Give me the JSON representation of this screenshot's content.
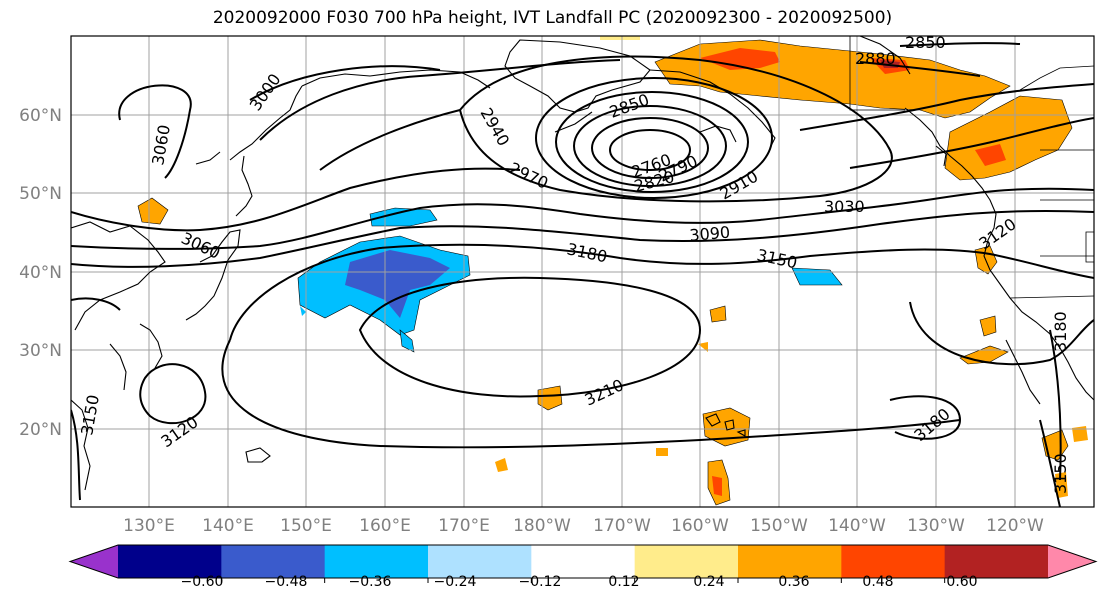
{
  "title": "2020092000 F030 700 hPa height, IVT Landfall PC (2020092300 - 2020092500)",
  "lat_labels": [
    "60°N",
    "50°N",
    "40°N",
    "30°N",
    "20°N"
  ],
  "lon_labels": [
    "130°E",
    "140°E",
    "150°E",
    "160°E",
    "170°E",
    "180°W",
    "170°W",
    "160°W",
    "150°W",
    "140°W",
    "130°W",
    "120°W"
  ],
  "contour_labels": [
    "3000",
    "3060",
    "2940",
    "2850",
    "2880",
    "2850",
    "2760",
    "2790",
    "2820",
    "2910",
    "2970",
    "3030",
    "3090",
    "3060",
    "3180",
    "3150",
    "3120",
    "3210",
    "3120",
    "3180",
    "3150",
    "3150",
    "3180"
  ],
  "colorbar": {
    "tick_labels": [
      "−0.60",
      "−0.48",
      "−0.36",
      "−0.24",
      "−0.12",
      "0.12",
      "0.24",
      "0.36",
      "0.48",
      "0.60"
    ],
    "colors": [
      "#9932cc",
      "#00008b",
      "#3a5bcc",
      "#00bfff",
      "#aee1ff",
      "#ffffff",
      "#ffec8b",
      "#ffa500",
      "#ff4500",
      "#b22222",
      "#ff88aa"
    ]
  }
}
